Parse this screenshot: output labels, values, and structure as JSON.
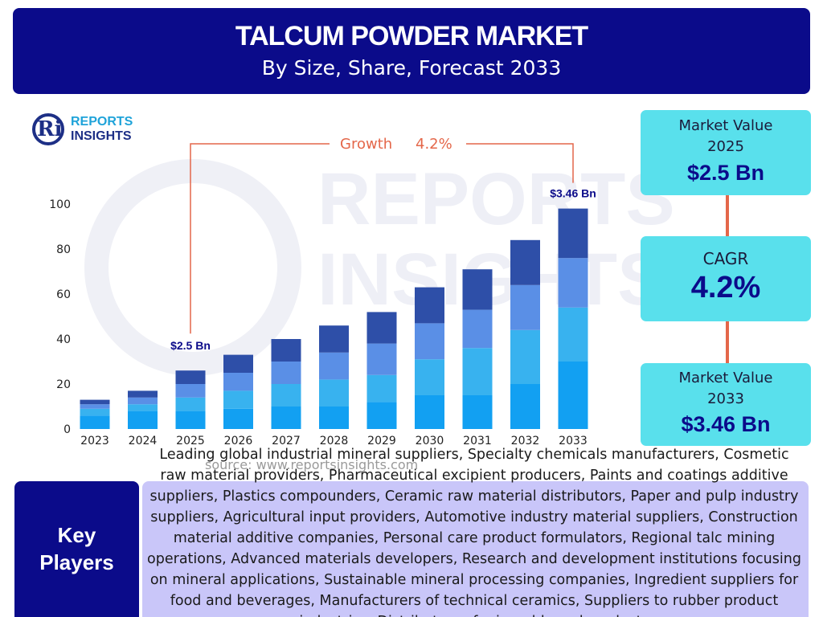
{
  "header": {
    "title": "TALCUM POWDER MARKET",
    "subtitle": "By Size, Share, Forecast 2033"
  },
  "logo": {
    "mark": "Ri",
    "line1": "REPORTS",
    "line2": "INSIGHTS"
  },
  "watermark": {
    "line1": "REPORTS",
    "line2": "INSIGHTS"
  },
  "chart_data": {
    "type": "bar",
    "stacked": true,
    "categories": [
      "2023",
      "2024",
      "2025",
      "2026",
      "2027",
      "2028",
      "2029",
      "2030",
      "2031",
      "2032",
      "2033"
    ],
    "series": [
      {
        "values": [
          6,
          8,
          8,
          9,
          10,
          10,
          12,
          15,
          15,
          20,
          30
        ]
      },
      {
        "values": [
          3,
          3,
          6,
          8,
          10,
          12,
          12,
          16,
          21,
          24,
          24
        ]
      },
      {
        "values": [
          2,
          3,
          6,
          8,
          10,
          12,
          14,
          16,
          17,
          20,
          22
        ]
      },
      {
        "values": [
          2,
          3,
          6,
          8,
          10,
          12,
          14,
          16,
          18,
          20,
          22
        ]
      }
    ],
    "colors": [
      "#12a0f2",
      "#38b2ef",
      "#5a8fe6",
      "#2e4fa8"
    ],
    "ylim": [
      0,
      100
    ],
    "yticks": [
      0,
      20,
      40,
      60,
      80,
      100
    ],
    "grid": false,
    "annotations": {
      "start_label": "$2.5 Bn",
      "end_label": "$3.46 Bn",
      "growth_label": "Growth",
      "growth_value": "4.2%",
      "start_category": "2025",
      "end_category": "2033"
    }
  },
  "cards": {
    "value_2025": {
      "label_line1": "Market Value",
      "label_line2": "2025",
      "value": "$2.5 Bn"
    },
    "cagr": {
      "label": "CAGR",
      "value": "4.2%"
    },
    "value_2033": {
      "label_line1": "Market Value",
      "label_line2": "2033",
      "value": "$3.46 Bn"
    }
  },
  "connector_color": "#e4674a",
  "source": "source: www.reportsinsights.com",
  "key_players": {
    "heading_line1": "Key",
    "heading_line2": "Players",
    "text": "Leading global industrial mineral suppliers, Specialty chemicals manufacturers, Cosmetic raw material providers, Pharmaceutical excipient producers, Paints and coatings additive suppliers, Plastics compounders, Ceramic raw material distributors, Paper and pulp industry suppliers, Agricultural input providers, Automotive industry material suppliers, Construction material additive companies, Personal care product formulators, Regional talc mining operations, Advanced materials developers, Research and development institutions focusing on mineral applications, Sustainable mineral processing companies, Ingredient suppliers for food and beverages, Manufacturers of technical ceramics, Suppliers to rubber product industries, Distributors of mineral-based products"
  }
}
